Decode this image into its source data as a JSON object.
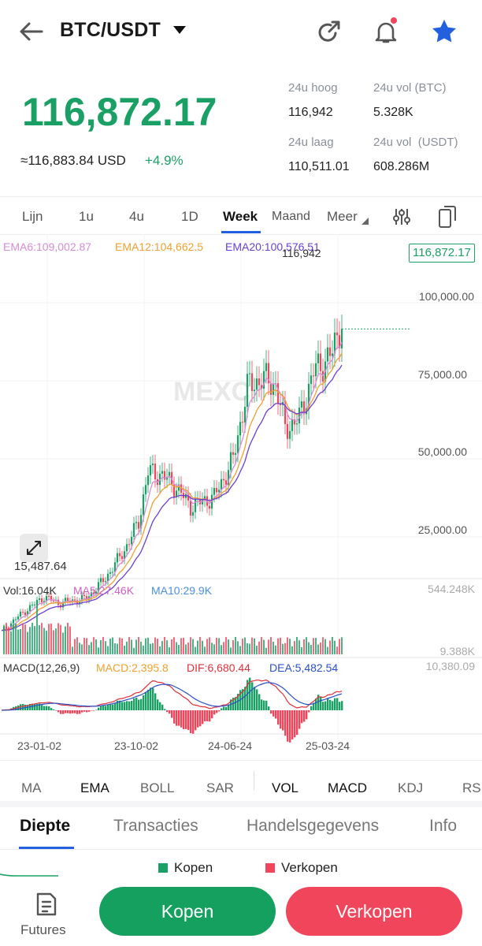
{
  "header": {
    "pair": "BTC/USDT"
  },
  "ticker": {
    "price": "116,872.17",
    "usd": "≈116,883.84 USD",
    "change": "+4.9%",
    "stats": [
      {
        "label": "24u hoog",
        "value": "116,942"
      },
      {
        "label": "24u vol (BTC)",
        "value": "5.328K"
      },
      {
        "label": "24u laag",
        "value": "110,511.01"
      },
      {
        "label": "24u vol  (USDT)",
        "value": "608.286M"
      }
    ]
  },
  "timeframes": [
    "Lijn",
    "1u",
    "4u",
    "1D",
    "Week",
    "Maand",
    "Meer"
  ],
  "active_timeframe": "Week",
  "chart": {
    "ema_legend": [
      {
        "label": "EMA6:109,002.87",
        "color": "#d98ad8"
      },
      {
        "label": "EMA12:104,662.5",
        "color": "#f0a030"
      },
      {
        "label": "EMA20:100,576.51",
        "color": "#6a3fd6"
      }
    ],
    "high_label": "116,942",
    "last_price_tag": "116,872.17",
    "low_label": "15,487.64",
    "y_axis": [
      "100,000.00",
      "75,000.00",
      "50,000.00",
      "25,000.00"
    ],
    "watermark": "MEXC",
    "vol_legend": [
      {
        "label": "Vol:16.04K",
        "color": "#333"
      },
      {
        "label": "MA5:27.46K",
        "color": "#d060c8"
      },
      {
        "label": "MA10:29.9K",
        "color": "#4a90e2"
      }
    ],
    "vol_axis": [
      "544.248K",
      "9.388K"
    ],
    "macd_legend": [
      {
        "label": "MACD(12,26,9)",
        "color": "#333"
      },
      {
        "label": "MACD:2,395.8",
        "color": "#f0a030"
      },
      {
        "label": "DIF:6,680.44",
        "color": "#e0303a"
      },
      {
        "label": "DEA:5,482.54",
        "color": "#2a50c8"
      }
    ],
    "macd_axis": "10,380.09",
    "x_axis": [
      "23-01-02",
      "23-10-02",
      "24-06-24",
      "25-03-24"
    ]
  },
  "indicators": [
    "MA",
    "EMA",
    "BOLL",
    "SAR",
    "VOL",
    "MACD",
    "KDJ",
    "RS"
  ],
  "tabs": [
    "Diepte",
    "Transacties",
    "Handelsgegevens",
    "Info"
  ],
  "depth_legend": [
    {
      "label": "Kopen",
      "color": "#1aa064"
    },
    {
      "label": "Verkopen",
      "color": "#f0455a"
    }
  ],
  "bottom": {
    "futures": "Futures",
    "buy": "Kopen",
    "sell": "Verkopen"
  },
  "colors": {
    "up": "#1aa064",
    "down": "#f0455a",
    "accent": "#2260e0"
  }
}
